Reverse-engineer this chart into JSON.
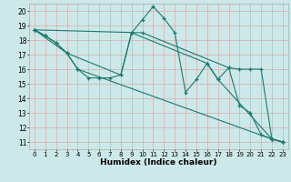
{
  "title": "",
  "xlabel": "Humidex (Indice chaleur)",
  "ylabel": "",
  "background_color": "#cce8e8",
  "line_color": "#1a7a6e",
  "xlim": [
    -0.5,
    23.5
  ],
  "ylim": [
    10.5,
    20.5
  ],
  "yticks": [
    11,
    12,
    13,
    14,
    15,
    16,
    17,
    18,
    19,
    20
  ],
  "xticks": [
    0,
    1,
    2,
    3,
    4,
    5,
    6,
    7,
    8,
    9,
    10,
    11,
    12,
    13,
    14,
    15,
    16,
    17,
    18,
    19,
    20,
    21,
    22,
    23
  ],
  "series": [
    {
      "x": [
        0,
        1,
        2,
        3,
        4,
        5,
        6,
        7,
        8,
        9,
        10,
        11,
        12,
        13,
        14,
        15,
        16,
        17,
        18,
        19,
        20,
        21,
        22,
        23
      ],
      "y": [
        18.7,
        18.3,
        17.8,
        17.1,
        16.0,
        15.4,
        15.4,
        15.4,
        15.6,
        18.5,
        19.4,
        20.3,
        19.5,
        18.5,
        14.4,
        15.3,
        16.4,
        15.3,
        16.1,
        13.5,
        13.0,
        11.5,
        11.2,
        11.0
      ]
    },
    {
      "x": [
        0,
        1,
        2,
        3,
        4,
        22,
        23
      ],
      "y": [
        18.7,
        18.3,
        17.8,
        17.1,
        16.0,
        11.2,
        11.0
      ]
    },
    {
      "x": [
        0,
        10,
        18,
        19,
        20,
        21,
        22,
        23
      ],
      "y": [
        18.7,
        18.5,
        16.1,
        16.0,
        16.0,
        16.0,
        11.2,
        11.0
      ]
    },
    {
      "x": [
        0,
        3,
        8,
        9,
        16,
        17,
        22,
        23
      ],
      "y": [
        18.7,
        17.1,
        15.6,
        18.5,
        16.4,
        15.3,
        11.2,
        11.0
      ]
    }
  ]
}
